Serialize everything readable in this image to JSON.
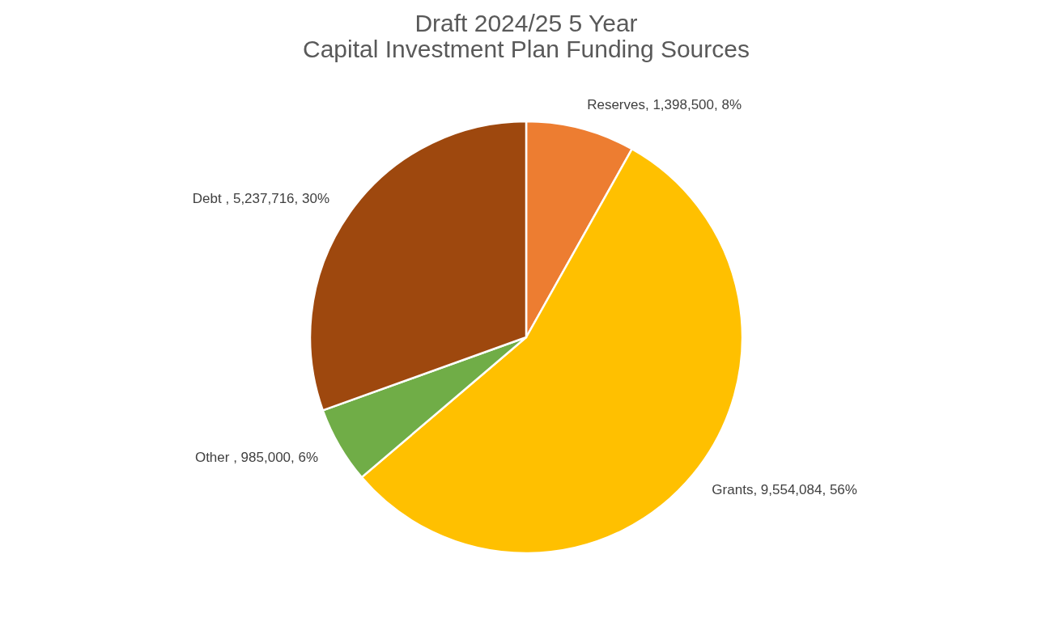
{
  "chart_data": {
    "type": "pie",
    "title": "Draft 2024/25 5 Year\nCapital Investment Plan  Funding Sources",
    "categories": [
      "Reserves",
      "Grants",
      "Other ",
      "Debt "
    ],
    "values": [
      1398500,
      9554084,
      985000,
      5237716
    ],
    "colors": [
      "#ed7d31",
      "#ffc000",
      "#70ad47",
      "#9e480e"
    ],
    "value_labels": [
      "1,398,500, 8%",
      "9,554,084, 56%",
      "985,000, 6%",
      "5,237,716, 30%"
    ],
    "legend": false
  }
}
